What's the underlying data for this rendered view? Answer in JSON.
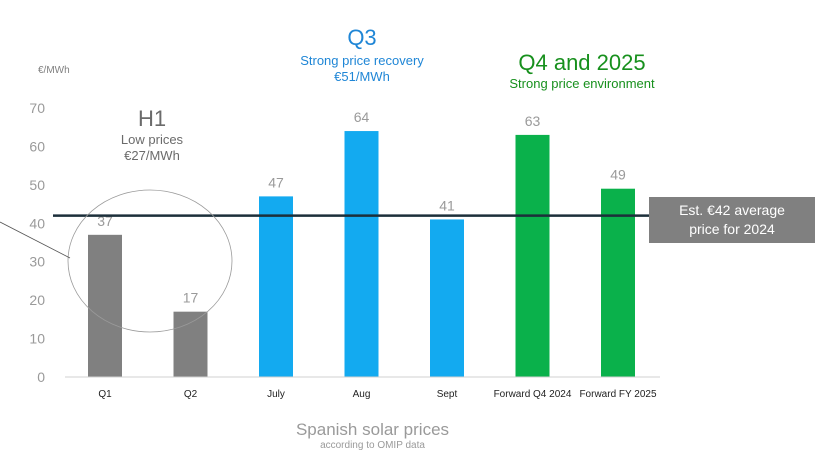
{
  "chart_data": {
    "type": "bar",
    "unit_label": "€/MWh",
    "categories": [
      "Q1",
      "Q2",
      "July",
      "Aug",
      "Sept",
      "Forward Q4 2024",
      "Forward FY 2025"
    ],
    "values": [
      37,
      17,
      47,
      64,
      41,
      63,
      49
    ],
    "bar_colors": [
      "#808080",
      "#808080",
      "#13aaf0",
      "#13aaf0",
      "#13aaf0",
      "#0ab14b",
      "#0ab14b"
    ],
    "ylim": [
      0,
      70
    ],
    "yticks": [
      0,
      10,
      20,
      30,
      40,
      50,
      60,
      70
    ],
    "grid": false,
    "reference_line": {
      "value": 42,
      "color": "#1c2f3a",
      "label_line1": "Est. €42 average",
      "label_line2": "price for 2024"
    },
    "groups": {
      "h1": {
        "title": "H1",
        "line1": "Low prices",
        "line2": "€27/MWh",
        "color": "#6b6b6b"
      },
      "q3": {
        "title": "Q3",
        "line1": "Strong price recovery",
        "line2": "€51/MWh",
        "color": "#1f86d6"
      },
      "q4": {
        "title": "Q4 and 2025",
        "line1": "Strong price environment",
        "color": "#17901d"
      }
    },
    "footer": {
      "title": "Spanish solar prices",
      "subtitle": "according to OMIP data"
    }
  }
}
